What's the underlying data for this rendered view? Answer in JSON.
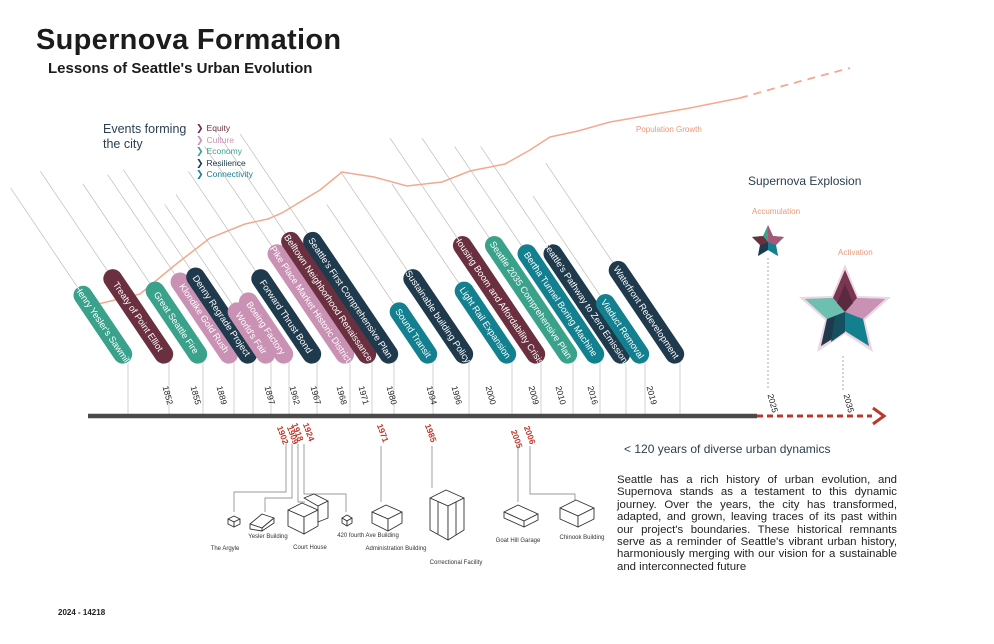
{
  "title": "Supernova Formation",
  "subtitle": "Lessons of Seattle's Urban Evolution",
  "events_title": "Events forming the city",
  "legend": [
    {
      "label": "Equity",
      "color": "#6b3040"
    },
    {
      "label": "Culture",
      "color": "#c991b3"
    },
    {
      "label": "Economy",
      "color": "#3aa28b"
    },
    {
      "label": "Resilience",
      "color": "#1e3a4c"
    },
    {
      "label": "Connectivity",
      "color": "#13808f"
    }
  ],
  "population_label": "Population Growth",
  "supernova_title": "Supernova Explosion",
  "accumulation_label": "Accumulation",
  "activation_label": "Activation",
  "events": [
    {
      "label": "Henry Yesler's Sawmill",
      "category": "Economy"
    },
    {
      "label": "Treaty of Point Elliot",
      "category": "Equity"
    },
    {
      "label": "Great Seattle Fire",
      "category": "Economy"
    },
    {
      "label": "Klondike Gold Rush",
      "category": "Culture"
    },
    {
      "label": "Denny Regrade Project",
      "category": "Resilience"
    },
    {
      "label": "World's Fair",
      "category": "Culture"
    },
    {
      "label": "Boeing Factory",
      "category": "Culture"
    },
    {
      "label": "Forward Thrust Bond",
      "category": "Resilience"
    },
    {
      "label": "Pike Place Market Historic District",
      "category": "Culture"
    },
    {
      "label": "Belltown Neighborhood Renaissance",
      "category": "Equity"
    },
    {
      "label": "Seattle's First Comprehensive Plan",
      "category": "Resilience"
    },
    {
      "label": "Sound Transit",
      "category": "Connectivity"
    },
    {
      "label": "Sustainable building Policy",
      "category": "Resilience"
    },
    {
      "label": "Light Rail Expansion",
      "category": "Connectivity"
    },
    {
      "label": "Housing Boom and Affordability Crisis",
      "category": "Equity"
    },
    {
      "label": "Seattle 2035 Comprehensive Plan",
      "category": "Economy"
    },
    {
      "label": "Bertha Tunnel Boring Machine",
      "category": "Connectivity"
    },
    {
      "label": "Seattle's Pathway to Zero Emissions",
      "category": "Resilience"
    },
    {
      "label": "Viaduct Removal",
      "category": "Connectivity"
    },
    {
      "label": "Waterfront Redevelopment",
      "category": "Resilience"
    }
  ],
  "timeline_years": [
    "1852",
    "1855",
    "1889",
    "1897",
    "1962",
    "1967",
    "1968",
    "1971",
    "1980",
    "1994",
    "1996",
    "2000",
    "2009",
    "2010",
    "2016",
    "2019"
  ],
  "future_years": [
    "2025",
    "2035"
  ],
  "building_years": [
    "1902",
    "1909",
    "1918",
    "1924",
    "1971",
    "1985",
    "2005",
    "2006"
  ],
  "buildings": [
    {
      "label": "The Argyle"
    },
    {
      "label": "Yesler Building"
    },
    {
      "label": "Court House"
    },
    {
      "label": "420 fourth Ave Building"
    },
    {
      "label": "Administration Building"
    },
    {
      "label": "Correctional Facility"
    },
    {
      "label": "Goat Hill Garage"
    },
    {
      "label": "Chinook Building"
    }
  ],
  "span_label": "< 120 years of diverse urban dynamics",
  "description": "Seattle has a rich history of urban evolution, and Supernova stands as a testament to this dynamic journey. Over the years, the city has transformed, adapted, and grown, leaving traces of its past within our project's boundaries. These historical remnants serve as a reminder of Seattle's vibrant urban history, harmoniously merging with our vision for a sustainable and interconnected future",
  "footer": "2024 - 14218",
  "colors": {
    "timeline": "#4a4a4a",
    "future_arrow": "#b9382a",
    "population": "#f1a98f",
    "red_years": "#c0392b",
    "text_dark": "#2c3e50"
  }
}
